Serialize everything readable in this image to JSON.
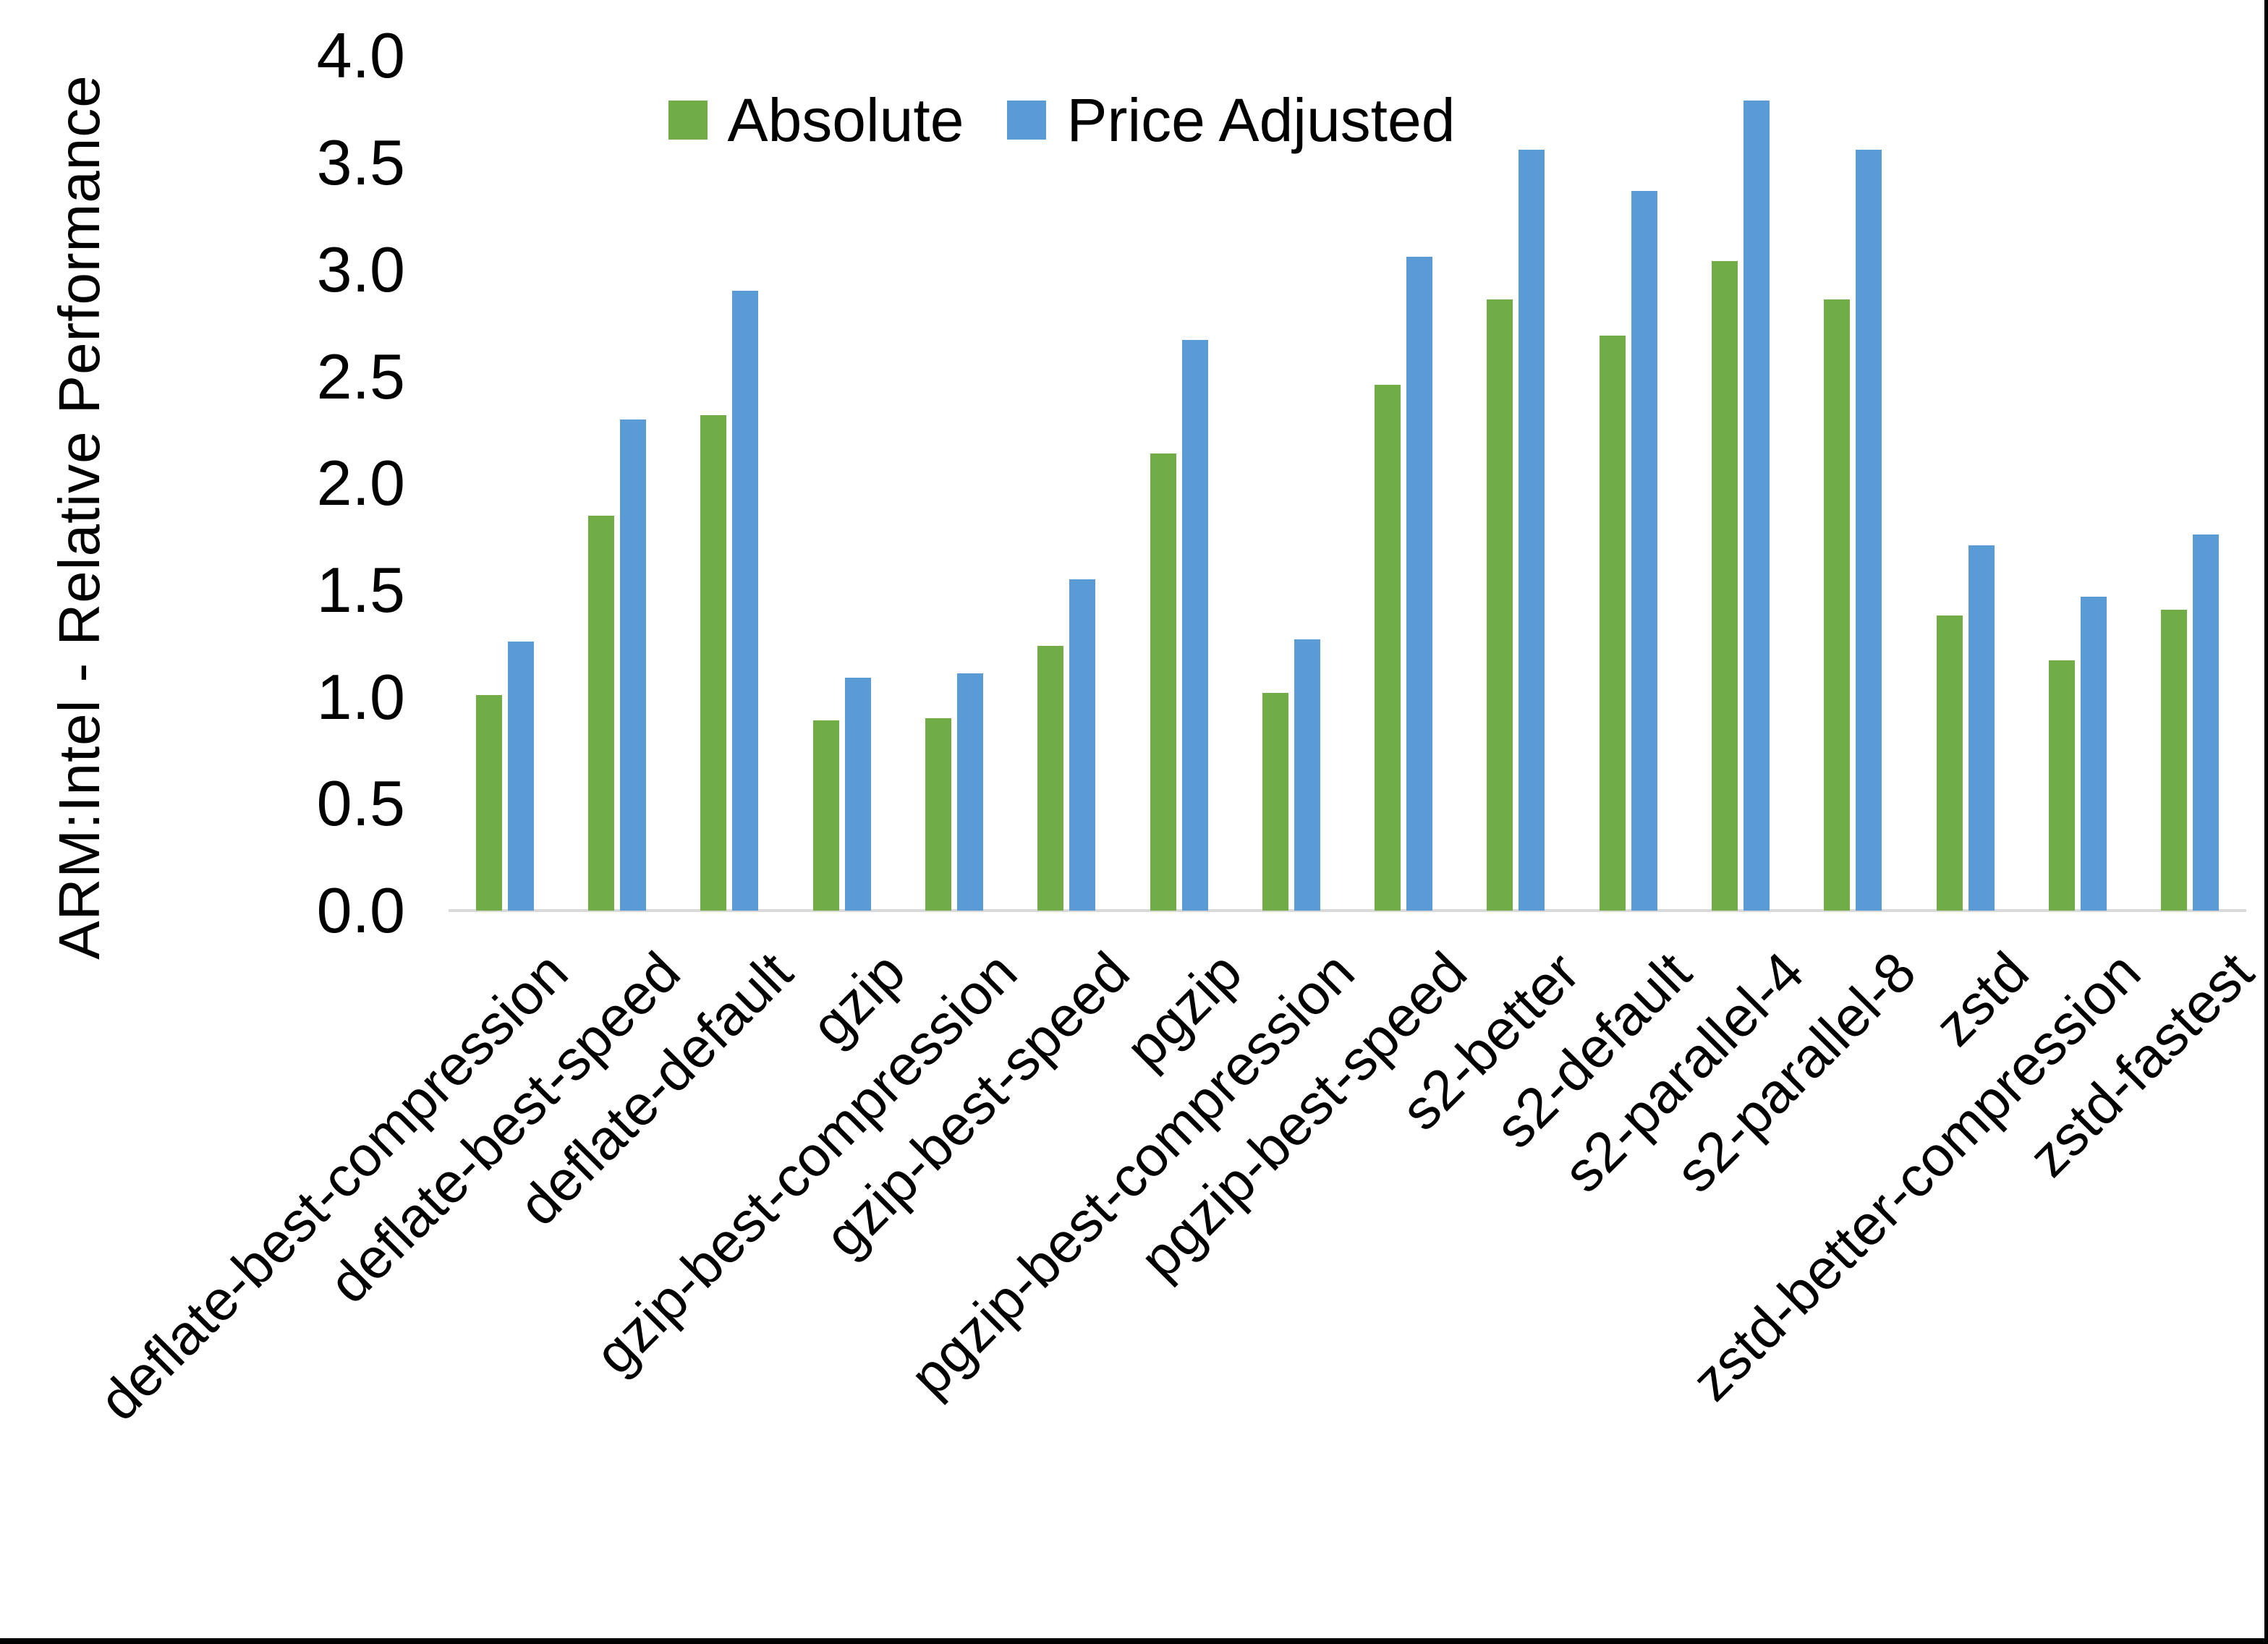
{
  "chart_data": {
    "type": "bar",
    "title": "",
    "xlabel": "",
    "ylabel": "ARM:Intel - Relative Performance",
    "ylim": [
      0,
      4
    ],
    "ytick_labels": [
      "0.0",
      "0.5",
      "1.0",
      "1.5",
      "2.0",
      "2.5",
      "3.0",
      "3.5",
      "4.0"
    ],
    "grid": false,
    "legend_position": "top",
    "axis_line_color": "#d9d9d9",
    "categories": [
      "deflate-best-compression",
      "deflate-best-speed",
      "deflate-default",
      "gzip",
      "gzip-best-compression",
      "gzip-best-speed",
      "pgzip",
      "pgzip-best-compression",
      "pgzip-best-speed",
      "s2-better",
      "s2-default",
      "s2-parallel-4",
      "s2-parallel-8",
      "zstd",
      "zstd-better-compression",
      "zstd-fastest"
    ],
    "series": [
      {
        "name": "Absolute",
        "color": "#70ad47",
        "values": [
          1.01,
          1.85,
          2.32,
          0.89,
          0.9,
          1.24,
          2.14,
          1.02,
          2.46,
          2.86,
          2.69,
          3.04,
          2.86,
          1.38,
          1.17,
          1.41
        ]
      },
      {
        "name": "Price Adjusted",
        "color": "#5b9bd5",
        "values": [
          1.26,
          2.3,
          2.9,
          1.09,
          1.11,
          1.55,
          2.67,
          1.27,
          3.06,
          3.56,
          3.37,
          3.79,
          3.56,
          1.71,
          1.47,
          1.76
        ]
      }
    ]
  }
}
